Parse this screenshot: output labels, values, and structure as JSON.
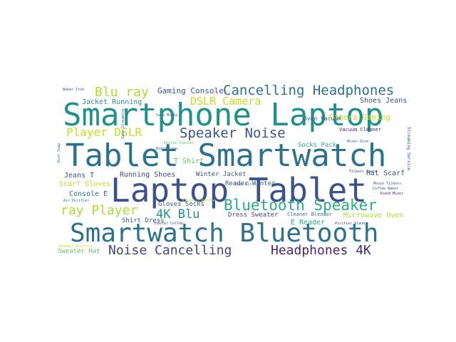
{
  "palette": {
    "dark_purple": "#482475",
    "navy": "#3b528b",
    "slate": "#414487",
    "blue_teal": "#2c728e",
    "teal": "#21918c",
    "green_teal": "#28ae80",
    "green": "#5ec962",
    "light_green": "#addc30",
    "yellow": "#fde725",
    "olive_yellow": "#c2df23"
  },
  "words": [
    "Smartphone Laptop",
    "Tablet Smartwatch",
    "Laptop Tablet",
    "Smartwatch Bluetooth",
    "Cancelling Headphones",
    "Bluetooth Speaker",
    "Speaker Noise",
    "Noise Cancelling",
    "Headphones 4K",
    "Blu ray",
    "ray Player",
    "DSLR Camera",
    "4K Blu",
    "Player DSLR",
    "Camera Gaming",
    "Gaming Console",
    "Shoes Jeans",
    "Oven Vacuum",
    "Vacuum Cleaner",
    "Jacket Running",
    "Socks Pack",
    "Reader Winter",
    "Winter Jacket",
    "Running Shoes",
    "T Shirt",
    "Jeans T",
    "Hat Scarf",
    "Scarf Gloves",
    "Console E",
    "Gloves Socks",
    "Dress Sweater",
    "Cleaner Blender",
    "Microwave Oven",
    "Shirt Dress",
    "E Reader",
    "Sweater Hat",
    "Waker Iron",
    "Soap Movie",
    "Kettle Toaster",
    "Board Game",
    "Iron Air",
    "Electric Kettle",
    "Toaster Coffee",
    "Purifier Stand",
    "Blender Electric",
    "Air Purifier",
    "Coffee Waker",
    "Stand Mixer",
    "Movie Tickets",
    "Tickets Board",
    "Game Streaming",
    "Streaming Service",
    "Dish Soap",
    "Mixer Dish"
  ]
}
